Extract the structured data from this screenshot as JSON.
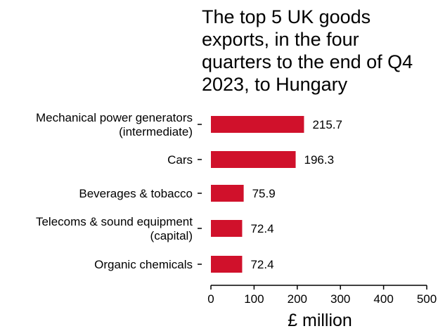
{
  "chart_data": {
    "type": "bar",
    "orientation": "horizontal",
    "title": "The top 5 UK goods exports, in the four quarters to the end of Q4 2023, to Hungary",
    "categories": [
      [
        "Mechanical power generators",
        "(intermediate)"
      ],
      [
        "Cars"
      ],
      [
        "Beverages & tobacco"
      ],
      [
        "Telecoms & sound equipment",
        "(capital)"
      ],
      [
        "Organic chemicals"
      ]
    ],
    "values": [
      215.7,
      196.3,
      75.9,
      72.4,
      72.4
    ],
    "value_labels": [
      "215.7",
      "196.3",
      "75.9",
      "72.4",
      "72.4"
    ],
    "xlabel": "£ million",
    "ylabel": "",
    "xlim": [
      0,
      500
    ],
    "xticks": [
      0,
      100,
      200,
      300,
      400,
      500
    ],
    "bar_color": "#d0112b",
    "grid": false,
    "legend": "none"
  }
}
